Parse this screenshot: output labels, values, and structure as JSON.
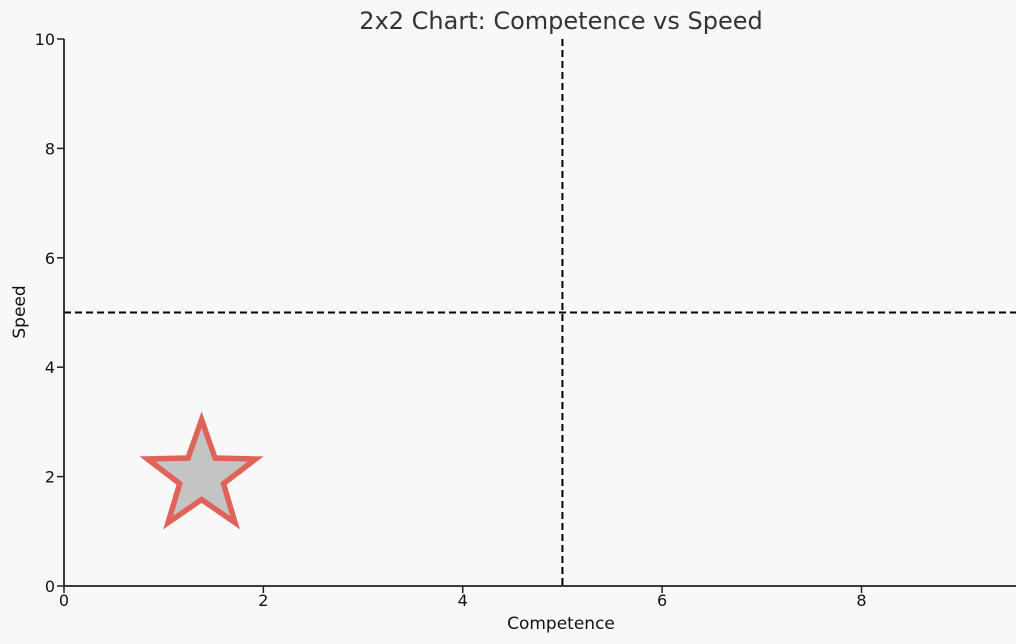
{
  "chart_data": {
    "type": "scatter",
    "title": "2x2 Chart: Competence vs Speed",
    "xlabel": "Competence",
    "ylabel": "Speed",
    "xlim": [
      0,
      9.55
    ],
    "ylim": [
      0,
      10
    ],
    "x_ticks": [
      "0",
      "2",
      "4",
      "6",
      "8"
    ],
    "y_ticks": [
      "0",
      "2",
      "4",
      "6",
      "8",
      "10"
    ],
    "grid": false,
    "quadrant_lines": {
      "x": 5,
      "y": 5,
      "style": "dashed",
      "color": "#000000"
    },
    "points": [
      {
        "x": 1.38,
        "y": 2.0,
        "marker": "star",
        "fill_color": "#c4c4c4",
        "edge_color": "#e06357"
      }
    ]
  },
  "colors": {
    "background": "#f8f8f8",
    "axis": "#222222",
    "text": "#111111",
    "title": "#333333"
  }
}
